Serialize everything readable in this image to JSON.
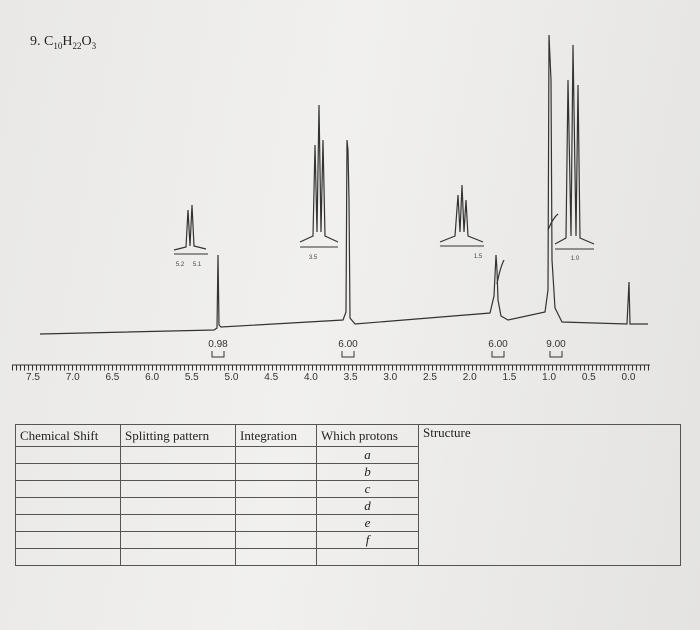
{
  "problem": {
    "number": "9.",
    "formula": [
      "C",
      "10",
      "H",
      "22",
      "O",
      "3"
    ]
  },
  "spectrum": {
    "axis_labels": [
      "7.5",
      "7.0",
      "6.5",
      "6.0",
      "5.5",
      "5.0",
      "4.5",
      "4.0",
      "3.5",
      "3.0",
      "2.5",
      "2.0",
      "1.5",
      "1.0",
      "0.5",
      "0.0"
    ],
    "integrations": [
      "0.98",
      "6.00",
      "6.00",
      "9.00"
    ],
    "inset_labels": [
      "5.2",
      "5.1",
      "3.5",
      "1.5",
      "1.0"
    ]
  },
  "table": {
    "headers": [
      "Chemical Shift",
      "Splitting pattern",
      "Integration",
      "Which protons",
      "Structure"
    ],
    "protons": [
      "a",
      "b",
      "c",
      "d",
      "e",
      "f"
    ]
  }
}
